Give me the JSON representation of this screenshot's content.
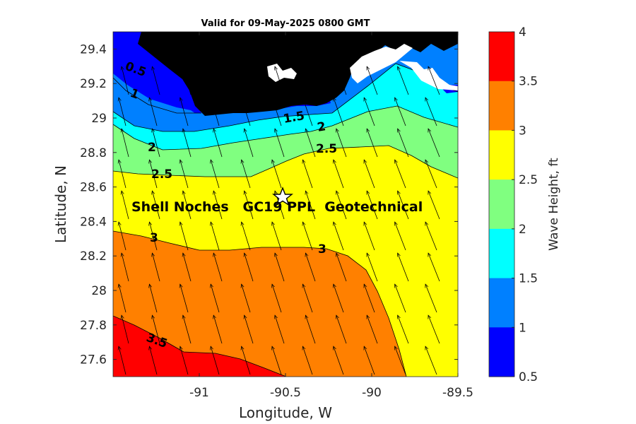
{
  "title": "Valid for 09-May-2025 0800 GMT",
  "xlabel": "Longitude, W",
  "ylabel": "Latitude, N",
  "colorbar_label": "Wave Height, ft",
  "site_label": "Shell Noches   GC19 PPL  Geotechnical",
  "x_ticks": [
    "-91",
    "-90.5",
    "-90",
    "-89.5"
  ],
  "y_ticks": [
    "29.4",
    "29.2",
    "29",
    "28.8",
    "28.6",
    "28.4",
    "28.2",
    "28",
    "27.8",
    "27.6"
  ],
  "colorbar_ticks": [
    "4",
    "3.5",
    "3",
    "2.5",
    "2",
    "1.5",
    "1",
    "0.5"
  ],
  "contour_labels": [
    "0.5",
    "1",
    "0.5",
    "1.5",
    "2",
    "2",
    "2.5",
    "2.5",
    "3",
    "3",
    "3.5"
  ],
  "colors": {
    "band_0_5_1": "#0000ff",
    "band_1_1_5": "#0080ff",
    "band_1_5_2": "#00ffff",
    "band_2_2_5": "#80ff80",
    "band_2_5_3": "#ffff00",
    "band_3_3_5": "#ff8000",
    "band_3_5_4": "#ff0000",
    "land": "#000000"
  },
  "chart_data": {
    "type": "heatmap",
    "subtype": "filled contour map with wave direction arrows",
    "title": "Valid for 09-May-2025 0800 GMT",
    "xlabel": "Longitude, W",
    "ylabel": "Latitude, N",
    "xlim": [
      -91.5,
      -89.5
    ],
    "ylim": [
      27.5,
      29.5
    ],
    "color_scale": {
      "label": "Wave Height, ft",
      "min": 0.5,
      "max": 4,
      "levels": [
        0.5,
        1,
        1.5,
        2,
        2.5,
        3,
        3.5,
        4
      ]
    },
    "site": {
      "lon": -90.52,
      "lat": 28.55,
      "marker": "star"
    },
    "arrow_direction": "toward north-northwest",
    "contour_levels_labeled": [
      0.5,
      1,
      1.5,
      2,
      2.5,
      3,
      3.5
    ]
  }
}
